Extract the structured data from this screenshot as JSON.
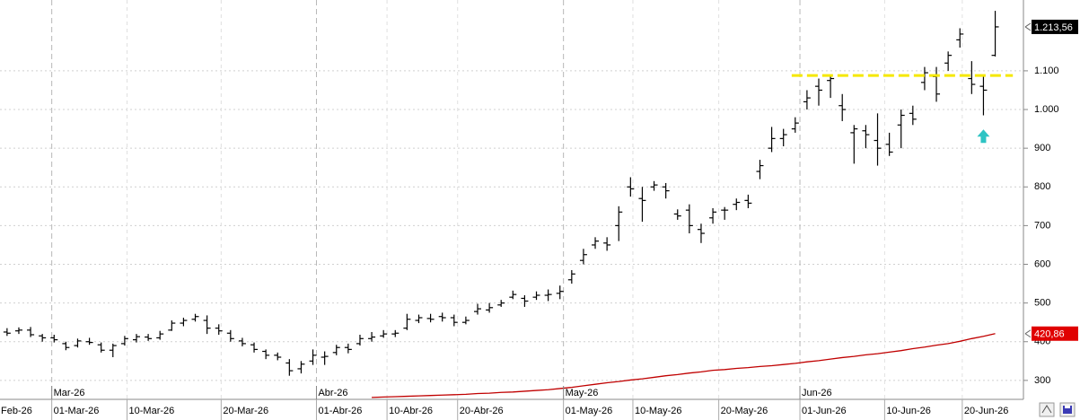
{
  "chart_data": {
    "type": "ohlc",
    "categories": [
      null,
      null,
      null,
      null,
      null,
      null,
      null,
      null,
      null,
      null,
      null,
      null,
      null,
      null,
      null,
      null,
      null,
      null,
      null,
      null,
      null,
      null,
      null,
      null,
      null,
      null,
      null,
      null,
      null,
      null,
      null,
      null,
      null,
      null,
      null,
      null,
      null,
      null,
      null,
      null,
      null,
      null,
      null,
      null,
      null,
      null,
      null,
      null,
      null,
      null,
      null,
      null,
      null,
      null,
      null,
      null,
      null,
      null,
      null,
      null,
      null,
      null,
      null,
      null,
      null,
      null,
      null,
      null,
      null,
      null,
      null,
      null,
      null,
      null,
      null,
      null,
      null,
      null,
      null,
      null,
      null,
      null,
      null,
      null,
      null
    ],
    "open": [
      425,
      428,
      430,
      415,
      410,
      395,
      390,
      400,
      392,
      378,
      395,
      405,
      412,
      410,
      430,
      448,
      458,
      455,
      435,
      422,
      402,
      392,
      375,
      365,
      345,
      330,
      350,
      360,
      372,
      385,
      395,
      408,
      415,
      420,
      435,
      455,
      460,
      465,
      462,
      450,
      478,
      482,
      495,
      515,
      512,
      515,
      520,
      525,
      560,
      610,
      650,
      655,
      700,
      800,
      770,
      800,
      800,
      730,
      740,
      690,
      720,
      740,
      755,
      765,
      840,
      900,
      925,
      950,
      1020,
      1060,
      1075,
      1010,
      940,
      945,
      920,
      910,
      960,
      990,
      1070,
      1085,
      1120,
      1180,
      1080,
      1060,
      1140
    ],
    "high": [
      435,
      437,
      438,
      420,
      418,
      400,
      408,
      410,
      398,
      395,
      415,
      420,
      420,
      428,
      455,
      462,
      472,
      468,
      445,
      430,
      410,
      398,
      380,
      372,
      355,
      350,
      380,
      375,
      392,
      395,
      418,
      425,
      430,
      430,
      472,
      470,
      472,
      475,
      470,
      465,
      498,
      500,
      508,
      532,
      520,
      530,
      535,
      545,
      585,
      640,
      670,
      670,
      750,
      825,
      800,
      815,
      810,
      742,
      755,
      705,
      745,
      748,
      770,
      780,
      870,
      955,
      950,
      980,
      1050,
      1080,
      1090,
      1040,
      960,
      960,
      990,
      940,
      1000,
      1010,
      1110,
      1110,
      1150,
      1210,
      1125,
      1085,
      1255
    ],
    "low": [
      415,
      420,
      412,
      400,
      398,
      378,
      385,
      392,
      372,
      360,
      390,
      398,
      402,
      405,
      428,
      440,
      452,
      420,
      418,
      400,
      388,
      372,
      355,
      352,
      312,
      318,
      340,
      340,
      365,
      370,
      390,
      400,
      410,
      412,
      430,
      448,
      450,
      452,
      440,
      445,
      470,
      475,
      490,
      510,
      490,
      508,
      505,
      510,
      550,
      600,
      640,
      635,
      660,
      775,
      710,
      790,
      770,
      715,
      680,
      655,
      705,
      715,
      740,
      745,
      820,
      890,
      905,
      940,
      1000,
      1010,
      1030,
      970,
      860,
      900,
      855,
      880,
      900,
      960,
      1050,
      1020,
      1100,
      1160,
      1040,
      985,
      1137
    ],
    "close": [
      422,
      430,
      418,
      410,
      405,
      385,
      402,
      398,
      378,
      390,
      408,
      413,
      408,
      420,
      448,
      455,
      465,
      435,
      428,
      408,
      395,
      380,
      365,
      360,
      325,
      342,
      365,
      362,
      385,
      380,
      408,
      412,
      420,
      422,
      458,
      462,
      458,
      462,
      450,
      455,
      485,
      488,
      500,
      522,
      505,
      520,
      522,
      530,
      575,
      625,
      660,
      650,
      735,
      795,
      765,
      805,
      790,
      725,
      700,
      680,
      735,
      740,
      760,
      758,
      855,
      925,
      935,
      965,
      1030,
      1050,
      1080,
      1000,
      950,
      935,
      900,
      890,
      985,
      975,
      1095,
      1040,
      1140,
      1195,
      1065,
      1050,
      1213.56
    ],
    "color": "#000000",
    "overlay": {
      "type": "line",
      "color": "#c00000",
      "values": [
        null,
        null,
        null,
        null,
        null,
        null,
        null,
        null,
        null,
        null,
        null,
        null,
        null,
        null,
        null,
        null,
        null,
        null,
        null,
        null,
        null,
        null,
        null,
        null,
        null,
        null,
        null,
        null,
        null,
        null,
        null,
        256,
        257,
        258,
        259,
        260,
        261,
        262,
        263,
        264,
        266,
        267,
        269,
        270,
        272,
        274,
        276,
        279,
        282,
        286,
        290,
        294,
        297,
        301,
        304,
        308,
        312,
        315,
        319,
        322,
        326,
        328,
        331,
        333,
        336,
        338,
        341,
        344,
        348,
        351,
        355,
        359,
        362,
        366,
        369,
        373,
        377,
        382,
        386,
        391,
        395,
        401,
        408,
        414,
        420.86
      ]
    },
    "price_tags": [
      {
        "value": 1213.56,
        "label": "1.213,56",
        "color": "#000000"
      },
      {
        "value": 420.86,
        "label": "420,86",
        "color": "#e00000"
      }
    ],
    "hline": {
      "value": 1088,
      "from": 66.7,
      "to": 85.5,
      "color": "#f5e800"
    },
    "marker": {
      "x": 83,
      "y": 930,
      "color": "#2ec4c4"
    },
    "xlim": [
      -0.6,
      86.4
    ],
    "ylim": [
      251,
      1283
    ],
    "yticks": [
      300,
      400,
      500,
      600,
      700,
      800,
      900,
      {
        "value": 1000,
        "label": "1.000"
      },
      {
        "value": 1100,
        "label": "1.100"
      }
    ],
    "month_ticks": [
      {
        "value": 3.8,
        "label": "Mar-26"
      },
      {
        "value": 26.3,
        "label": "Abr-26"
      },
      {
        "value": 47.3,
        "label": "May-26"
      },
      {
        "value": 67.4,
        "label": "Jun-26"
      }
    ],
    "xticks": [
      {
        "value": -1,
        "label": "Feb-26"
      },
      {
        "value": 3.8,
        "label": "01-Mar-26"
      },
      {
        "value": 10.2,
        "label": "10-Mar-26"
      },
      {
        "value": 18.2,
        "label": "20-Mar-26"
      },
      {
        "value": 26.3,
        "label": "01-Abr-26"
      },
      {
        "value": 32.3,
        "label": "10-Abr-26"
      },
      {
        "value": 38.3,
        "label": "20-Abr-26"
      },
      {
        "value": 47.3,
        "label": "01-May-26"
      },
      {
        "value": 53.2,
        "label": "10-May-26"
      },
      {
        "value": 60.5,
        "label": "20-May-26"
      },
      {
        "value": 67.4,
        "label": "01-Jun-26"
      },
      {
        "value": 74.6,
        "label": "10-Jun-26"
      },
      {
        "value": 81.2,
        "label": "20-Jun-26"
      }
    ],
    "grid": true
  }
}
